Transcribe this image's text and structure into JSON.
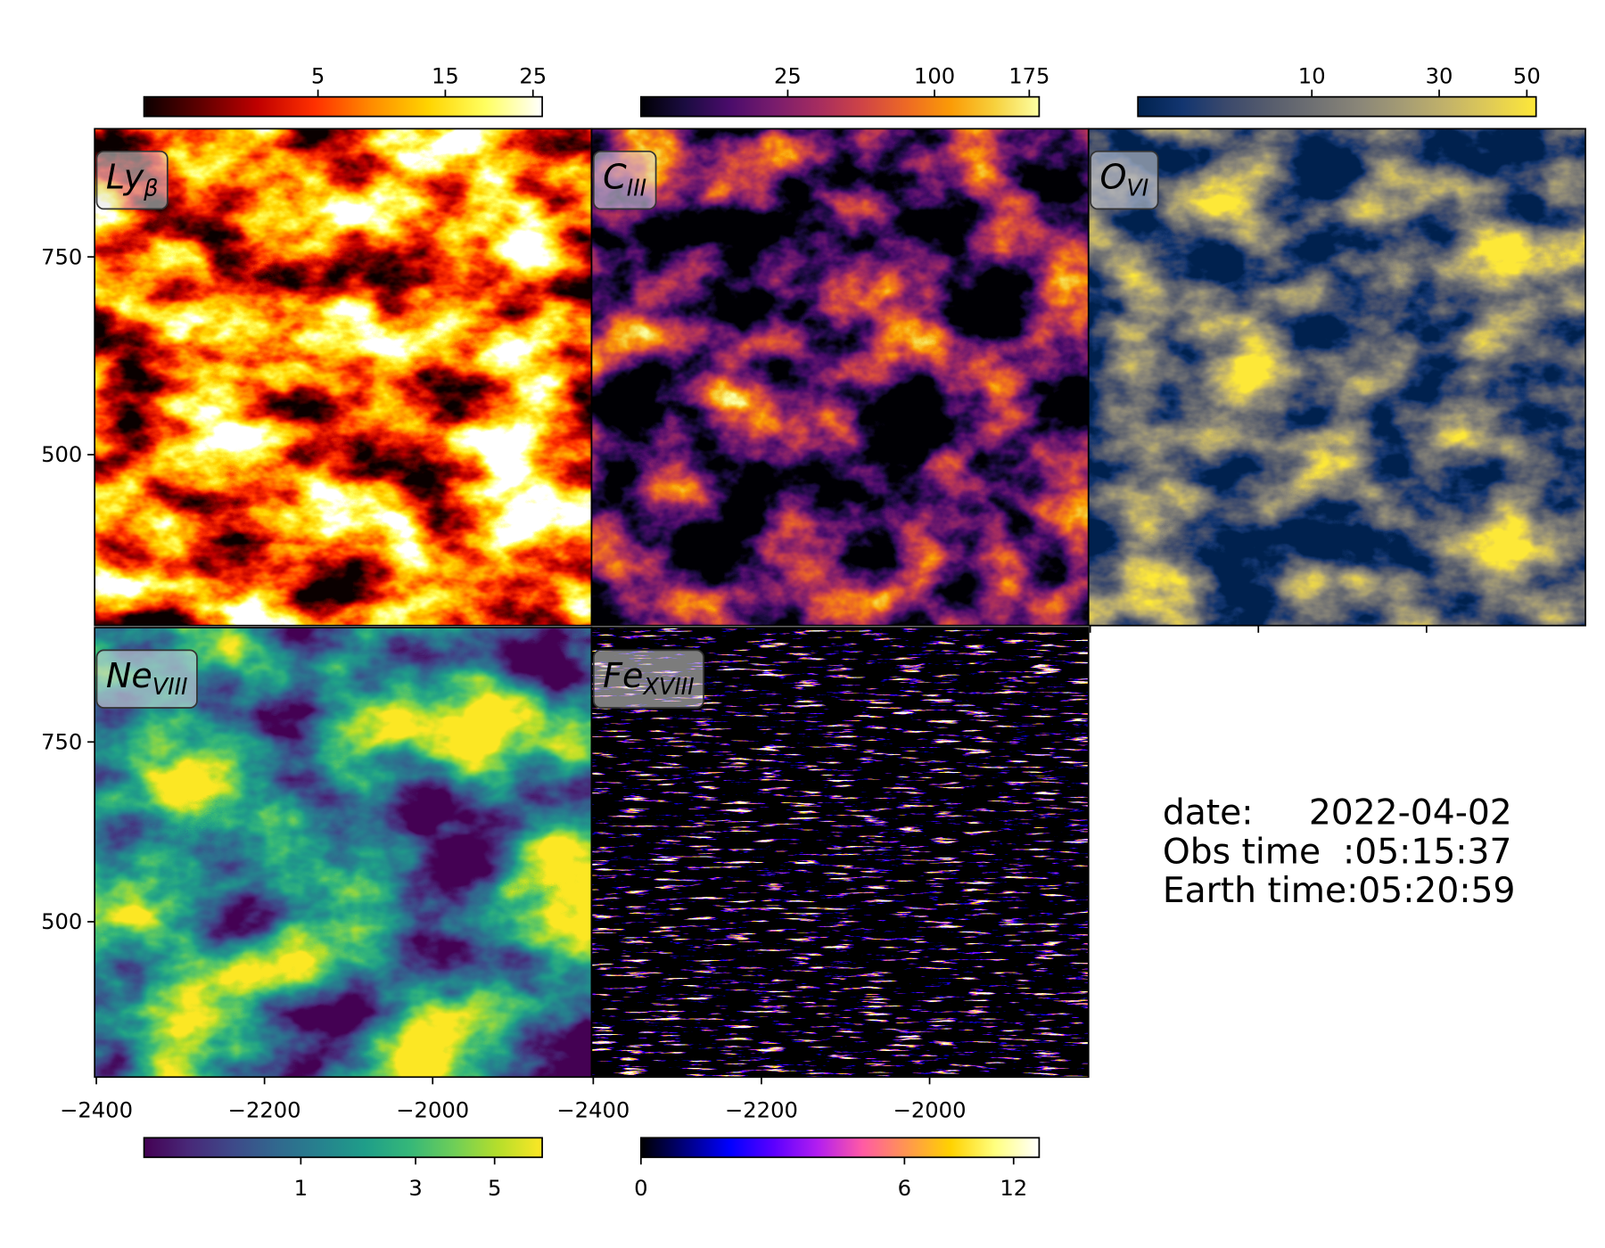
{
  "chart_data": [
    {
      "type": "image",
      "label": {
        "main": "Ly",
        "sub": "β"
      },
      "xlim": [
        -2402,
        -1811
      ],
      "ylim": [
        284,
        912
      ],
      "yticks": [
        {
          "value": 750,
          "label": "750"
        },
        {
          "value": 500,
          "label": "500"
        }
      ],
      "colorbar": {
        "lim": [
          0,
          26.2
        ],
        "scale": "sqrt",
        "ticks": [
          5,
          15,
          25
        ],
        "colors": [
          "#0b0000",
          "#600000",
          "#c00000",
          "#ff3000",
          "#ff8c00",
          "#ffd400",
          "#ffff60",
          "#ffffff"
        ]
      }
    },
    {
      "type": "image",
      "label": {
        "main": "C",
        "sub": "III"
      },
      "xlim": [
        -2402,
        -1811
      ],
      "ylim": [
        284,
        912
      ],
      "colorbar": {
        "lim": [
          0,
          184
        ],
        "scale": "sqrt",
        "ticks": [
          25,
          100,
          175
        ],
        "colors": [
          "#000004",
          "#1b0c41",
          "#4a0c6b",
          "#781c6d",
          "#a52c60",
          "#cf4446",
          "#ed6925",
          "#fb9b06",
          "#f7d13d",
          "#fcffa4"
        ]
      }
    },
    {
      "type": "image",
      "label": {
        "main": "O",
        "sub": "VI"
      },
      "xlim": [
        -2402,
        -1811
      ],
      "ylim": [
        284,
        912
      ],
      "xticks": [
        -2400,
        -2200,
        -2000
      ],
      "tick_labels": false,
      "colorbar": {
        "lim": [
          0,
          52.4
        ],
        "scale": "sqrt",
        "ticks": [
          10,
          30,
          50
        ],
        "colors": [
          "#00224e",
          "#123570",
          "#3b496c",
          "#575d6d",
          "#707173",
          "#8a8678",
          "#a59c74",
          "#c3b369",
          "#e1cc55",
          "#fee838"
        ]
      }
    },
    {
      "type": "image",
      "label": {
        "main": "Ne",
        "sub": "VIII"
      },
      "xlim": [
        -2402,
        -1811
      ],
      "ylim": [
        284,
        909
      ],
      "yticks": [
        {
          "value": 750,
          "label": "750"
        },
        {
          "value": 500,
          "label": "500"
        }
      ],
      "xticks": [
        {
          "value": -2400,
          "label": "−2400"
        },
        {
          "value": -2200,
          "label": "−2200"
        },
        {
          "value": -2000,
          "label": "−2000"
        }
      ],
      "colorbar": {
        "lim": [
          0,
          6.45
        ],
        "scale": "sqrt",
        "ticks": [
          1,
          3,
          5
        ],
        "colors": [
          "#440154",
          "#482878",
          "#3e4989",
          "#31688e",
          "#26828e",
          "#1f9e89",
          "#35b779",
          "#6ece58",
          "#b5de2b",
          "#fde725"
        ]
      }
    },
    {
      "type": "image",
      "label": {
        "main": "Fe",
        "sub": "XVIII"
      },
      "xlim": [
        -2402,
        -1811
      ],
      "ylim": [
        284,
        909
      ],
      "xticks": [
        {
          "value": -2400,
          "label": "−2400"
        },
        {
          "value": -2200,
          "label": "−2200"
        },
        {
          "value": -2000,
          "label": "−2000"
        }
      ],
      "colorbar": {
        "lim": [
          0,
          13.7
        ],
        "scale": "sqrt",
        "ticks": [
          0,
          6,
          12
        ],
        "colors": [
          "#000000",
          "#00007f",
          "#0000ff",
          "#5b00ff",
          "#b31ef0",
          "#ff5aa5",
          "#ff9650",
          "#ffd200",
          "#ffff7f",
          "#ffffff"
        ]
      }
    }
  ],
  "annotation": [
    "date:     2022-04-02",
    "Obs time  :05:15:37",
    "Earth time:05:20:59"
  ]
}
